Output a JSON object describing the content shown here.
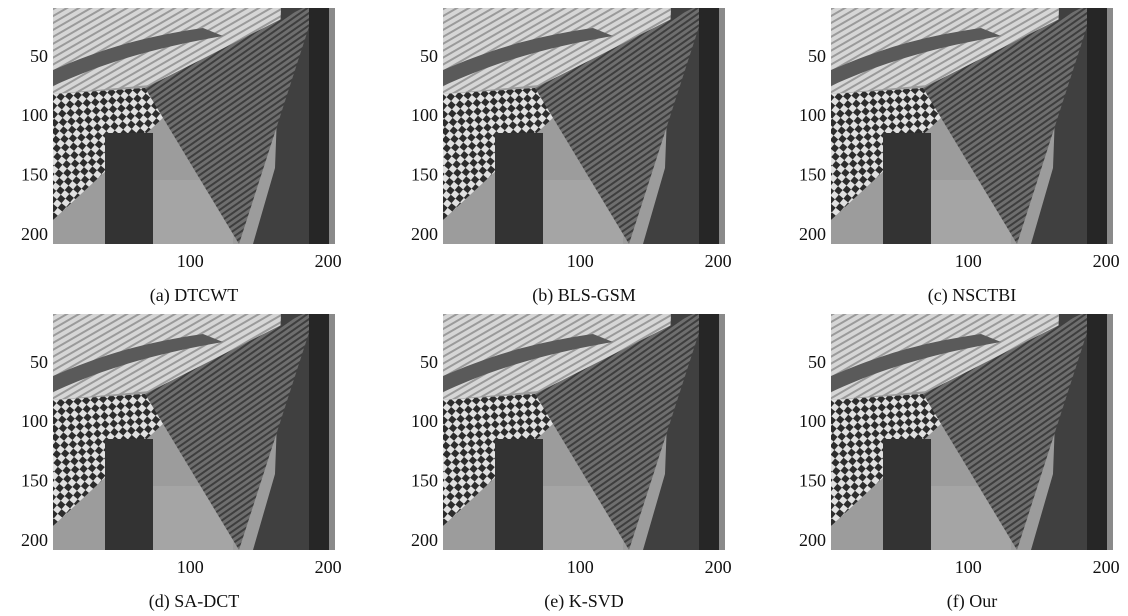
{
  "chart_data": [
    {
      "type": "image",
      "caption": "(a) DTCWT",
      "xlim": [
        0.5,
        205
      ],
      "ylim": [
        207,
        8
      ],
      "xticks": [
        100,
        200
      ],
      "yticks": [
        50,
        100,
        150,
        200
      ]
    },
    {
      "type": "image",
      "caption": "(b) BLS-GSM",
      "xlim": [
        0.5,
        205
      ],
      "ylim": [
        207,
        8
      ],
      "xticks": [
        100,
        200
      ],
      "yticks": [
        50,
        100,
        150,
        200
      ]
    },
    {
      "type": "image",
      "caption": "(c) NSCTBI",
      "xlim": [
        0.5,
        205
      ],
      "ylim": [
        207,
        8
      ],
      "xticks": [
        100,
        200
      ],
      "yticks": [
        50,
        100,
        150,
        200
      ]
    },
    {
      "type": "image",
      "caption": "(d) SA-DCT",
      "xlim": [
        0.5,
        205
      ],
      "ylim": [
        207,
        8
      ],
      "xticks": [
        100,
        200
      ],
      "yticks": [
        50,
        100,
        150,
        200
      ]
    },
    {
      "type": "image",
      "caption": "(e) K-SVD",
      "xlim": [
        0.5,
        205
      ],
      "ylim": [
        207,
        8
      ],
      "xticks": [
        100,
        200
      ],
      "yticks": [
        50,
        100,
        150,
        200
      ]
    },
    {
      "type": "image",
      "caption": "(f) Our",
      "xlim": [
        0.5,
        205
      ],
      "ylim": [
        207,
        8
      ],
      "xticks": [
        100,
        200
      ],
      "yticks": [
        50,
        100,
        150,
        200
      ]
    }
  ]
}
